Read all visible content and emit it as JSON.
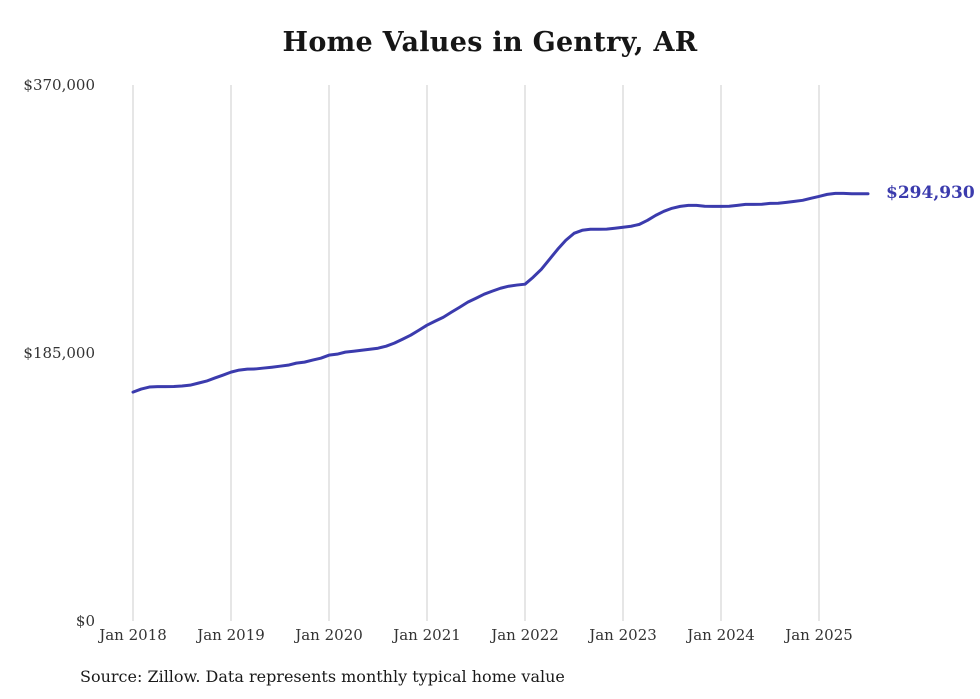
{
  "chart_data": {
    "type": "line",
    "title": "Home Values in Gentry, AR",
    "source": "Source: Zillow. Data represents monthly typical home value",
    "annotation_label": "$294,930",
    "latest_value": 294930,
    "line_color": "#3b3bad",
    "grid_color": "#cccccc",
    "xlabel": "",
    "ylabel": "",
    "ylim": [
      0,
      370000
    ],
    "grid": "vertical-only",
    "legend": "none",
    "y_ticks": [
      {
        "value": 370000,
        "label": "$370,000"
      },
      {
        "value": 185000,
        "label": "$185,000"
      },
      {
        "value": 0,
        "label": "$0"
      }
    ],
    "x_ticks": [
      {
        "month": "2018-01",
        "label": "Jan 2018"
      },
      {
        "month": "2019-01",
        "label": "Jan 2019"
      },
      {
        "month": "2020-01",
        "label": "Jan 2020"
      },
      {
        "month": "2021-01",
        "label": "Jan 2021"
      },
      {
        "month": "2022-01",
        "label": "Jan 2022"
      },
      {
        "month": "2023-01",
        "label": "Jan 2023"
      },
      {
        "month": "2024-01",
        "label": "Jan 2024"
      },
      {
        "month": "2025-01",
        "label": "Jan 2025"
      }
    ],
    "months": [
      "2018-01",
      "2018-02",
      "2018-03",
      "2018-04",
      "2018-05",
      "2018-06",
      "2018-07",
      "2018-08",
      "2018-09",
      "2018-10",
      "2018-11",
      "2018-12",
      "2019-01",
      "2019-02",
      "2019-03",
      "2019-04",
      "2019-05",
      "2019-06",
      "2019-07",
      "2019-08",
      "2019-09",
      "2019-10",
      "2019-11",
      "2019-12",
      "2020-01",
      "2020-02",
      "2020-03",
      "2020-04",
      "2020-05",
      "2020-06",
      "2020-07",
      "2020-08",
      "2020-09",
      "2020-10",
      "2020-11",
      "2020-12",
      "2021-01",
      "2021-02",
      "2021-03",
      "2021-04",
      "2021-05",
      "2021-06",
      "2021-07",
      "2021-08",
      "2021-09",
      "2021-10",
      "2021-11",
      "2021-12",
      "2022-01",
      "2022-02",
      "2022-03",
      "2022-04",
      "2022-05",
      "2022-06",
      "2022-07",
      "2022-08",
      "2022-09",
      "2022-10",
      "2022-11",
      "2022-12",
      "2023-01",
      "2023-02",
      "2023-03",
      "2023-04",
      "2023-05",
      "2023-06",
      "2023-07",
      "2023-08",
      "2023-09",
      "2023-10",
      "2023-11",
      "2023-12",
      "2024-01",
      "2024-02",
      "2024-03",
      "2024-04",
      "2024-05",
      "2024-06",
      "2024-07",
      "2024-08",
      "2024-09",
      "2024-10",
      "2024-11",
      "2024-12",
      "2025-01",
      "2025-02",
      "2025-03",
      "2025-04",
      "2025-05",
      "2025-06",
      "2025-07"
    ],
    "values": [
      158000,
      160100,
      161500,
      161800,
      161800,
      161900,
      162200,
      162800,
      164200,
      165600,
      167700,
      169700,
      171800,
      173200,
      173900,
      174000,
      174600,
      175200,
      175900,
      176600,
      178000,
      178700,
      180100,
      181400,
      183500,
      184200,
      185600,
      186200,
      186900,
      187600,
      188300,
      189700,
      191800,
      194500,
      197300,
      200700,
      204200,
      207000,
      209700,
      213200,
      216600,
      220100,
      222800,
      225600,
      227700,
      229700,
      231100,
      231900,
      232500,
      237300,
      242800,
      249700,
      256600,
      262800,
      267600,
      269700,
      270400,
      270400,
      270500,
      271100,
      271800,
      272500,
      273800,
      276600,
      280000,
      282800,
      284900,
      286200,
      286900,
      286900,
      286300,
      286200,
      286200,
      286300,
      286900,
      287600,
      287600,
      287700,
      288300,
      288400,
      289000,
      289700,
      290400,
      291800,
      293100,
      294500,
      295200,
      295200,
      294900,
      294900,
      294930
    ]
  }
}
